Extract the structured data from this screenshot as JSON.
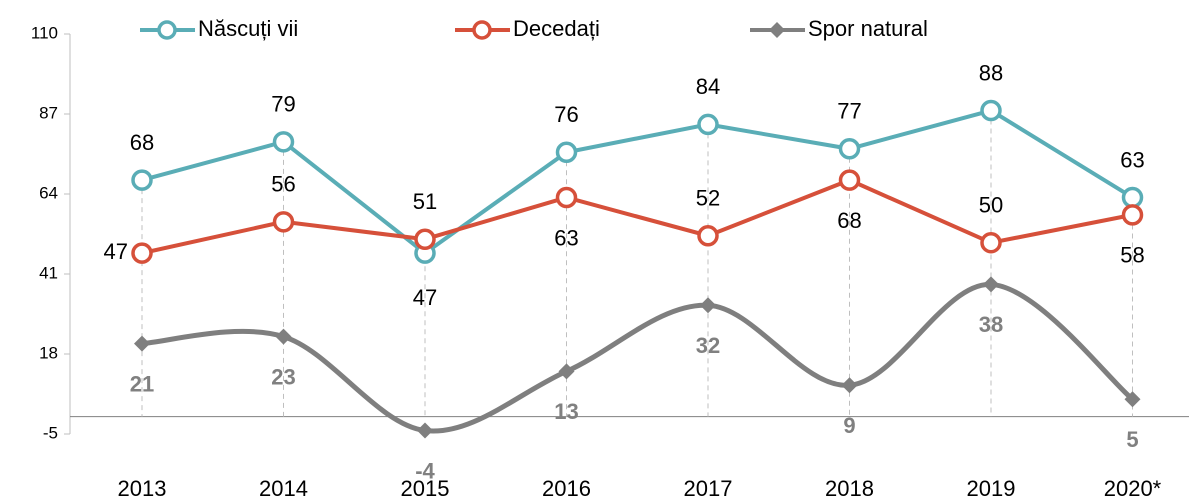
{
  "chart_data": {
    "type": "line",
    "categories": [
      "2013",
      "2014",
      "2015",
      "2016",
      "2017",
      "2018",
      "2019",
      "2020*"
    ],
    "series": [
      {
        "name": "Născuți vii",
        "color": "#5aadb6",
        "values": [
          68,
          79,
          47,
          76,
          84,
          77,
          88,
          63
        ]
      },
      {
        "name": "Decedați",
        "color": "#d6503a",
        "values": [
          47,
          56,
          51,
          63,
          52,
          68,
          50,
          58
        ]
      },
      {
        "name": "Spor natural",
        "color": "#7f7f7f",
        "values": [
          21,
          23,
          -4,
          13,
          32,
          9,
          38,
          5
        ]
      }
    ],
    "ylim": [
      -5,
      110
    ],
    "yticks": [
      -5,
      18,
      41,
      64,
      87,
      110
    ]
  }
}
